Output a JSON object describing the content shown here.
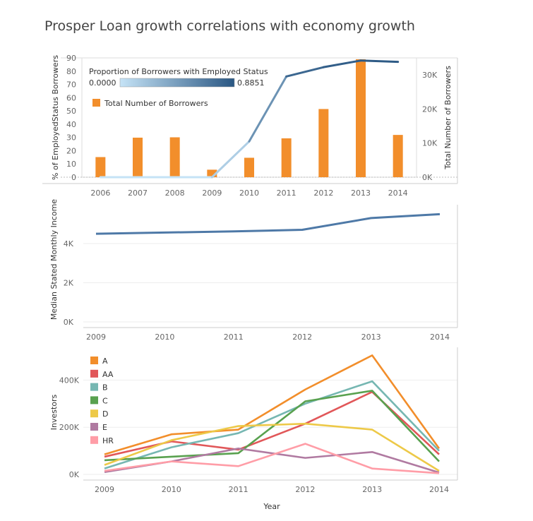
{
  "title": "Prosper Loan growth correlations with economy growth",
  "chart_data": [
    {
      "type": "bar+line",
      "categories": [
        "2006",
        "2007",
        "2008",
        "2009",
        "2010",
        "2011",
        "2012",
        "2013",
        "2014"
      ],
      "bar_series": {
        "name": "Total Number of Borrowers",
        "axis": "right",
        "values": [
          5900,
          11600,
          11700,
          2200,
          5700,
          11400,
          20000,
          34600,
          12400
        ],
        "color": "#f28e2b"
      },
      "line_series": {
        "name": "Proportion of Borrowers with Employed Status",
        "axis": "left",
        "values": [
          0,
          0,
          0,
          0,
          27,
          76,
          83,
          88,
          87
        ]
      },
      "ylabel_left": "% of EmployedStatus Borrowers",
      "ylabel_right": "Total Number of Borrowers",
      "yticks_left": [
        "0",
        "10",
        "20",
        "30",
        "40",
        "50",
        "60",
        "70",
        "80",
        "90"
      ],
      "yticks_right": [
        "0K",
        "10K",
        "20K",
        "30K"
      ],
      "ylim_left": [
        0,
        90
      ],
      "ylim_right": [
        0,
        35000
      ],
      "color_legend": {
        "title": "Proportion of Borrowers with Employed Status",
        "min": "0.0000",
        "max": "0.8851",
        "color_low": "#c5e3f6",
        "color_high": "#2a5783"
      }
    },
    {
      "type": "line",
      "categories": [
        "2009",
        "2010",
        "2011",
        "2012",
        "2013",
        "2014"
      ],
      "values": [
        4500,
        4560,
        4620,
        4700,
        5300,
        5500
      ],
      "ylabel": "Median Stated Monthly Income",
      "yticks": [
        "0K",
        "2K",
        "4K"
      ],
      "ylim": [
        0,
        5800
      ],
      "color": "#4e79a7"
    },
    {
      "type": "line",
      "categories": [
        "2009",
        "2010",
        "2011",
        "2012",
        "2013",
        "2014"
      ],
      "xlabel": "Year",
      "ylabel": "Investors",
      "yticks": [
        "0K",
        "200K",
        "400K"
      ],
      "ylim": [
        0,
        530000
      ],
      "series": [
        {
          "name": "A",
          "color": "#f28e2b",
          "values": [
            85000,
            170000,
            190000,
            360000,
            505000,
            110000
          ]
        },
        {
          "name": "AA",
          "color": "#e15759",
          "values": [
            75000,
            140000,
            105000,
            215000,
            350000,
            85000
          ]
        },
        {
          "name": "B",
          "color": "#76b7b2",
          "values": [
            25000,
            115000,
            175000,
            300000,
            395000,
            100000
          ]
        },
        {
          "name": "C",
          "color": "#59a14f",
          "values": [
            60000,
            75000,
            90000,
            310000,
            355000,
            55000
          ]
        },
        {
          "name": "D",
          "color": "#edc948",
          "values": [
            40000,
            145000,
            205000,
            215000,
            190000,
            15000
          ]
        },
        {
          "name": "E",
          "color": "#b07aa1",
          "values": [
            10000,
            55000,
            110000,
            70000,
            95000,
            8000
          ]
        },
        {
          "name": "HR",
          "color": "#ff9da7",
          "values": [
            15000,
            55000,
            35000,
            130000,
            25000,
            5000
          ]
        }
      ]
    }
  ]
}
